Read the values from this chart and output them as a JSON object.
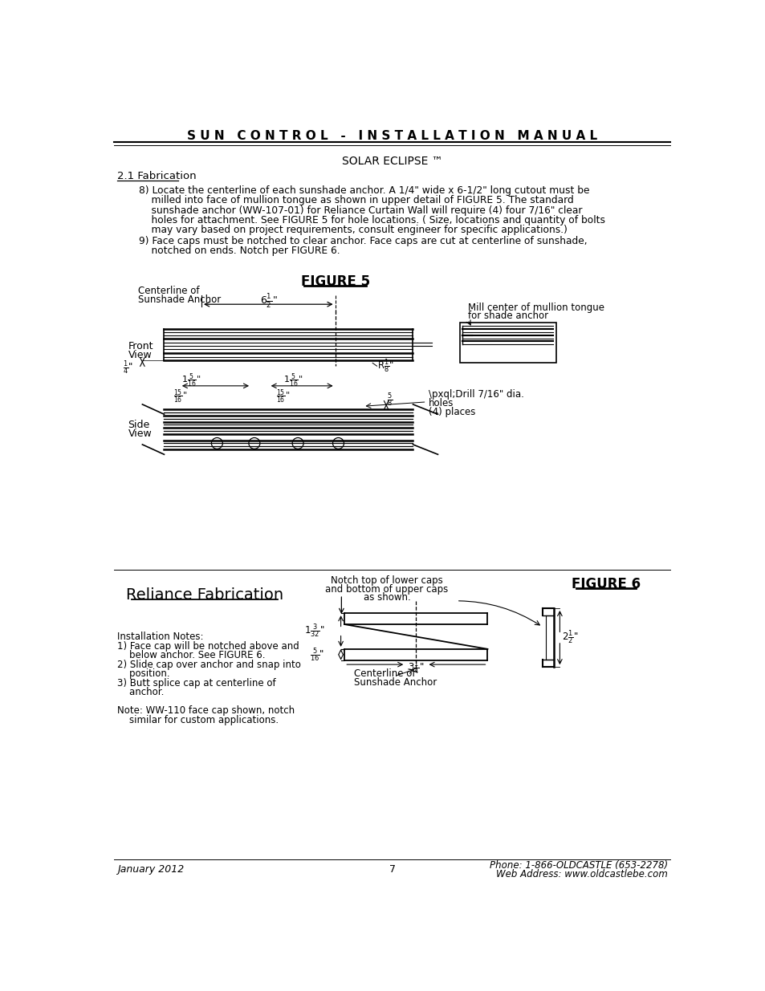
{
  "title": "S U N   C O N T R O L   -   I N S T A L L A T I O N   M A N U A L",
  "subtitle": "SOLAR ECLIPSE ™",
  "section": "2.1 Fabrication",
  "figure5_title": "FIGURE 5",
  "figure6_title": "FIGURE 6",
  "reliance_title": "Reliance Fabrication",
  "footer_left": "January 2012",
  "footer_center": "7",
  "footer_right_1": "Phone: 1-866-OLDCASTLE (653-2278)",
  "footer_right_2": "Web Address: www.oldcastlebe.com",
  "bg_color": "#ffffff",
  "text_color": "#000000",
  "para8_lines": [
    "8) Locate the centerline of each sunshade anchor. A 1/4\" wide x 6-1/2\" long cutout must be",
    "    milled into face of mullion tongue as shown in upper detail of FIGURE 5. The standard",
    "    sunshade anchor (WW-107-01) for Reliance Curtain Wall will require (4) four 7/16\" clear",
    "    holes for attachment. See FIGURE 5 for hole locations. ( Size, locations and quantity of bolts",
    "    may vary based on project requirements, consult engineer for specific applications.)"
  ],
  "para9_lines": [
    "9) Face caps must be notched to clear anchor. Face caps are cut at centerline of sunshade,",
    "    notched on ends. Notch per FIGURE 6."
  ],
  "install_lines": [
    "Installation Notes:",
    "1) Face cap will be notched above and",
    "    below anchor. See FIGURE 6.",
    "2) Slide cap over anchor and snap into",
    "    position.",
    "3) Butt splice cap at centerline of",
    "    anchor.",
    "",
    "Note: WW-110 face cap shown, notch",
    "    similar for custom applications."
  ]
}
